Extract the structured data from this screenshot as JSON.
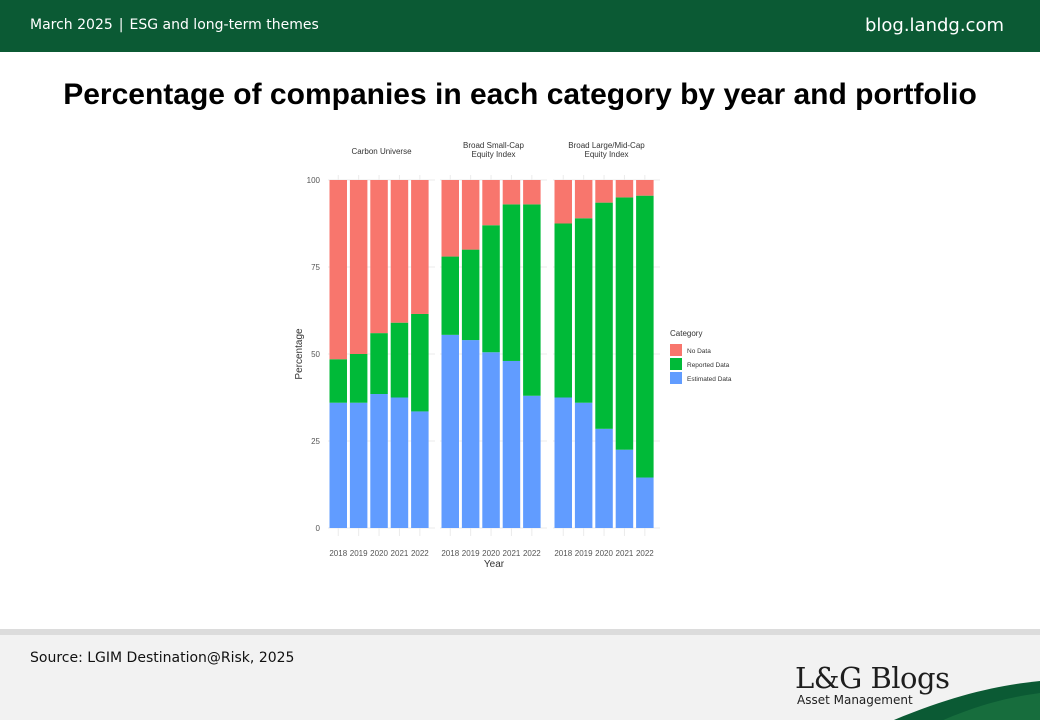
{
  "header": {
    "date": "March 2025",
    "separator": "|",
    "topic": "ESG and long-term themes",
    "site": "blog.landg.com"
  },
  "page_title": "Percentage of companies in each category by year and portfolio",
  "footer": {
    "source": "Source: LGIM Destination@Risk, 2025",
    "logo_text": "L&G Blogs",
    "logo_sub": "Asset Management"
  },
  "colors": {
    "header_bg": "#0b5a34",
    "no_data": "#f8766d",
    "reported_data": "#00ba38",
    "estimated_data": "#619cff"
  },
  "chart_data": {
    "type": "bar",
    "stacked": true,
    "faceted": true,
    "xlabel": "Year",
    "ylabel": "Percentage",
    "ylim": [
      0,
      100
    ],
    "yticks": [
      0,
      25,
      50,
      75,
      100
    ],
    "categories": [
      "2018",
      "2019",
      "2020",
      "2021",
      "2022"
    ],
    "legend": {
      "title": "Category",
      "position": "right",
      "entries": [
        "No Data",
        "Reported Data",
        "Estimated Data"
      ]
    },
    "grid": true,
    "panels": [
      {
        "title_lines": [
          "Carbon Universe"
        ],
        "series": [
          {
            "name": "Estimated Data",
            "values": [
              36,
              36,
              38.5,
              37.5,
              33.5
            ]
          },
          {
            "name": "Reported Data",
            "values": [
              12.5,
              14,
              17.5,
              21.5,
              28
            ]
          },
          {
            "name": "No Data",
            "values": [
              51.5,
              50,
              44,
              41,
              38.5
            ]
          }
        ]
      },
      {
        "title_lines": [
          "Broad Small-Cap",
          "Equity Index"
        ],
        "series": [
          {
            "name": "Estimated Data",
            "values": [
              55.5,
              54,
              50.5,
              48,
              38
            ]
          },
          {
            "name": "Reported Data",
            "values": [
              22.5,
              26,
              36.5,
              45,
              55
            ]
          },
          {
            "name": "No Data",
            "values": [
              22,
              20,
              13,
              7,
              7
            ]
          }
        ]
      },
      {
        "title_lines": [
          "Broad Large/Mid-Cap",
          "Equity Index"
        ],
        "series": [
          {
            "name": "Estimated Data",
            "values": [
              37.5,
              36,
              28.5,
              22.5,
              14.5
            ]
          },
          {
            "name": "Reported Data",
            "values": [
              50,
              53,
              65,
              72.5,
              81
            ]
          },
          {
            "name": "No Data",
            "values": [
              12.5,
              11,
              6.5,
              5,
              4.5
            ]
          }
        ]
      }
    ]
  }
}
